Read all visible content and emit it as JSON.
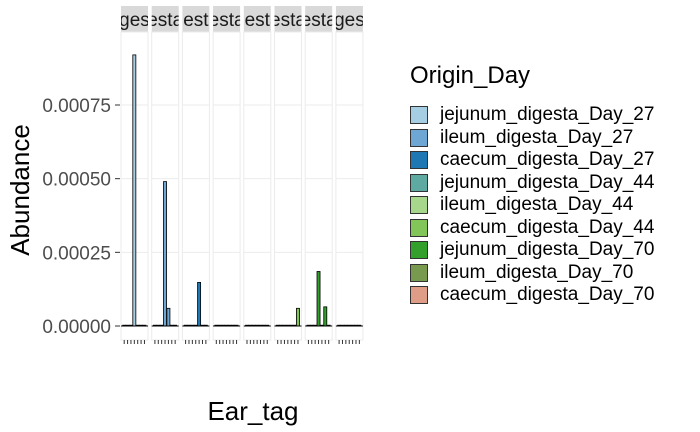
{
  "chart_data": {
    "type": "bar",
    "facet_strips": [
      "ges",
      "esta",
      "gesta",
      "esta",
      "gesta",
      "esta",
      "esta",
      "ges"
    ],
    "panels": [
      {
        "strip": "ges",
        "groups": [
          {
            "series": "jejunum_digesta_Day_27",
            "bars": [
              0,
              0,
              0,
              0.00092,
              0,
              0,
              0
            ]
          }
        ]
      },
      {
        "strip": "esta",
        "groups": [
          {
            "series": "ileum_digesta_Day_27",
            "bars": [
              0,
              0,
              0,
              0.00049,
              6e-05,
              0,
              0
            ]
          }
        ]
      },
      {
        "strip": "gesta",
        "groups": [
          {
            "series": "caecum_digesta_Day_27",
            "bars": [
              0,
              0,
              0,
              0,
              0.000148,
              0,
              0
            ]
          }
        ]
      },
      {
        "strip": "esta",
        "groups": [
          {
            "series": "jejunum_digesta_Day_44",
            "bars": [
              0,
              0,
              0,
              0,
              0,
              0,
              0
            ]
          }
        ]
      },
      {
        "strip": "gesta",
        "groups": [
          {
            "series": "ileum_digesta_Day_44",
            "bars": [
              0,
              0,
              0,
              0,
              0,
              0,
              0
            ]
          }
        ]
      },
      {
        "strip": "esta",
        "groups": [
          {
            "series": "caecum_digesta_Day_44",
            "bars": [
              0,
              0,
              0,
              0,
              0,
              0,
              6e-05
            ]
          }
        ]
      },
      {
        "strip": "esta",
        "groups": [
          {
            "series": "jejunum_digesta_Day_70",
            "bars": [
              0,
              0,
              0,
              0.000185,
              0,
              6.5e-05,
              0
            ]
          }
        ]
      },
      {
        "strip": "ges",
        "groups": [
          {
            "series": "caecum_digesta_Day_70",
            "bars": [
              0,
              0,
              0,
              0,
              0,
              0,
              0
            ]
          }
        ]
      }
    ],
    "series": [
      {
        "name": "jejunum_digesta_Day_27",
        "color": "#a6cee3"
      },
      {
        "name": "ileum_digesta_Day_27",
        "color": "#6ea6d4"
      },
      {
        "name": "caecum_digesta_Day_27",
        "color": "#1f78b4"
      },
      {
        "name": "jejunum_digesta_Day_44",
        "color": "#5ea9a1"
      },
      {
        "name": "ileum_digesta_Day_44",
        "color": "#a6d78a"
      },
      {
        "name": "caecum_digesta_Day_44",
        "color": "#82c65a"
      },
      {
        "name": "jejunum_digesta_Day_70",
        "color": "#33a02c"
      },
      {
        "name": "ileum_digesta_Day_70",
        "color": "#789a4e"
      },
      {
        "name": "caecum_digesta_Day_70",
        "color": "#df9d88"
      }
    ],
    "xlabel": "Ear_tag",
    "ylabel": "Abundance",
    "ylim": [
      0,
      0.00096
    ],
    "yticks": [
      "0.00000",
      "0.00025",
      "0.00050",
      "0.00075"
    ],
    "ytick_values": [
      0,
      0.00025,
      0.0005,
      0.00075
    ],
    "legend_title": "Origin_Day",
    "legend_position": "right",
    "panel_background": "#ffffff",
    "grid_color": "#ebebeb",
    "strip_color": "#d9d9d9"
  },
  "legend": {
    "title": "Origin_Day",
    "items": [
      {
        "label": "jejunum_digesta_Day_27",
        "color": "#a6cee3"
      },
      {
        "label": "ileum_digesta_Day_27",
        "color": "#6ea6d4"
      },
      {
        "label": "caecum_digesta_Day_27",
        "color": "#1f78b4"
      },
      {
        "label": "jejunum_digesta_Day_44",
        "color": "#5ea9a1"
      },
      {
        "label": "ileum_digesta_Day_44",
        "color": "#a6d78a"
      },
      {
        "label": "caecum_digesta_Day_44",
        "color": "#82c65a"
      },
      {
        "label": "jejunum_digesta_Day_70",
        "color": "#33a02c"
      },
      {
        "label": "ileum_digesta_Day_70",
        "color": "#789a4e"
      },
      {
        "label": "caecum_digesta_Day_70",
        "color": "#df9d88"
      }
    ]
  }
}
